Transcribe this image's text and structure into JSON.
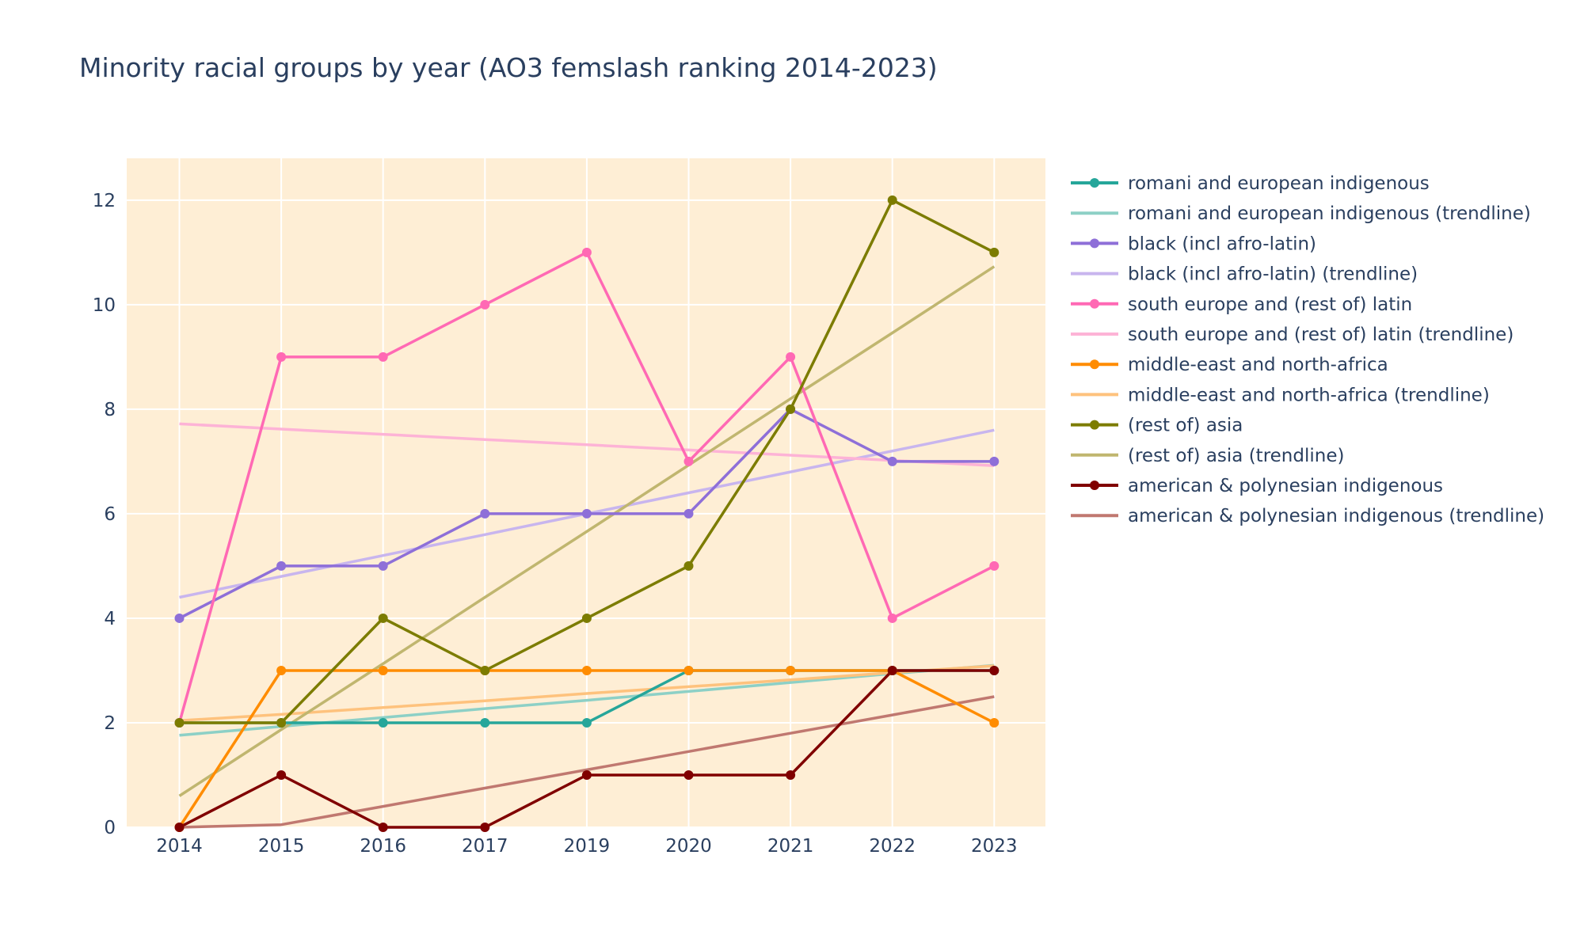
{
  "chart_data": {
    "type": "line",
    "title": "Minority racial groups by year (AO3 femslash ranking 2014-2023)",
    "xlabel": "",
    "ylabel": "",
    "categories": [
      "2014",
      "2015",
      "2016",
      "2017",
      "2019",
      "2020",
      "2021",
      "2022",
      "2023"
    ],
    "ylim": [
      0,
      12.8
    ],
    "yticks": [
      0,
      2,
      4,
      6,
      8,
      10,
      12
    ],
    "grid": true,
    "legend_position": "right",
    "plot_background": "#feeed5",
    "series": [
      {
        "name": "romani and european indigenous",
        "kind": "data",
        "color": "#26a69a",
        "values": [
          2,
          2,
          2,
          2,
          2,
          3,
          3,
          3,
          3
        ]
      },
      {
        "name": "romani and european indigenous (trendline)",
        "kind": "trend",
        "color": "#8dd0c6",
        "values": [
          1.76,
          1.93,
          2.1,
          2.27,
          2.43,
          2.6,
          2.77,
          2.94,
          3.1
        ]
      },
      {
        "name": "black (incl afro-latin)",
        "kind": "data",
        "color": "#8e6fd8",
        "values": [
          4,
          5,
          5,
          6,
          6,
          6,
          8,
          7,
          7
        ]
      },
      {
        "name": "black (incl afro-latin) (trendline)",
        "kind": "trend",
        "color": "#c8b5ee",
        "values": [
          4.4,
          4.8,
          5.2,
          5.6,
          6.0,
          6.4,
          6.8,
          7.2,
          7.6
        ]
      },
      {
        "name": "south europe and (rest of) latin",
        "kind": "data",
        "color": "#ff69b4",
        "values": [
          2,
          9,
          9,
          10,
          11,
          7,
          9,
          4,
          5
        ]
      },
      {
        "name": "south europe and (rest of) latin (trendline)",
        "kind": "trend",
        "color": "#fdb3d6",
        "values": [
          7.72,
          7.62,
          7.52,
          7.42,
          7.32,
          7.22,
          7.12,
          7.02,
          6.92
        ]
      },
      {
        "name": "middle-east and north-africa",
        "kind": "data",
        "color": "#ff8c00",
        "values": [
          0,
          3,
          3,
          3,
          3,
          3,
          3,
          3,
          2
        ]
      },
      {
        "name": "middle-east and north-africa (trendline)",
        "kind": "trend",
        "color": "#fec27d",
        "values": [
          2.04,
          2.16,
          2.29,
          2.42,
          2.56,
          2.69,
          2.82,
          2.96,
          3.09
        ]
      },
      {
        "name": "(rest of) asia",
        "kind": "data",
        "color": "#7c7c00",
        "values": [
          2,
          2,
          4,
          3,
          4,
          5,
          8,
          12,
          11
        ]
      },
      {
        "name": "(rest of) asia (trendline)",
        "kind": "trend",
        "color": "#c0b66f",
        "values": [
          0.6,
          1.87,
          3.13,
          4.4,
          5.66,
          6.93,
          8.2,
          9.46,
          10.73
        ]
      },
      {
        "name": "american & polynesian indigenous",
        "kind": "data",
        "color": "#800000",
        "values": [
          0,
          1,
          0,
          0,
          1,
          1,
          1,
          3,
          3
        ]
      },
      {
        "name": "american & polynesian indigenous (trendline)",
        "kind": "trend",
        "color": "#c07870",
        "values": [
          0,
          0.05,
          0.4,
          0.75,
          1.1,
          1.45,
          1.8,
          2.15,
          2.5
        ]
      }
    ]
  }
}
